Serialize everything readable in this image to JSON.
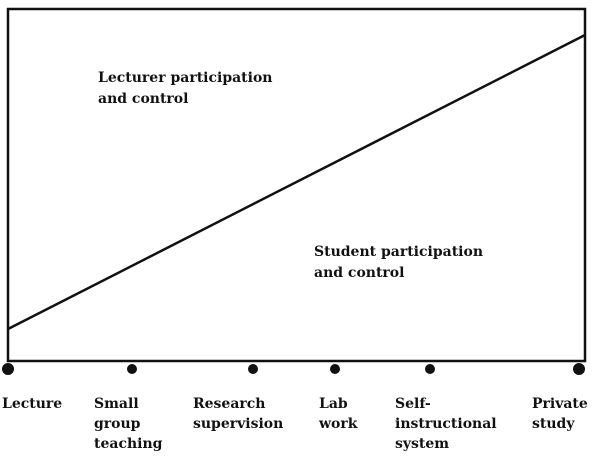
{
  "regions": {
    "upper_label": "Lecturer participation\nand control",
    "lower_label": "Student participation\nand control"
  },
  "continuum": [
    "Lecture",
    "Small\ngroup\nteaching",
    "Research\nsupervision",
    "Lab\nwork",
    "Self-\ninstructional\nsystem",
    "Private\nstudy"
  ],
  "colors": {
    "ink": "#111111",
    "background": "#ffffff"
  }
}
